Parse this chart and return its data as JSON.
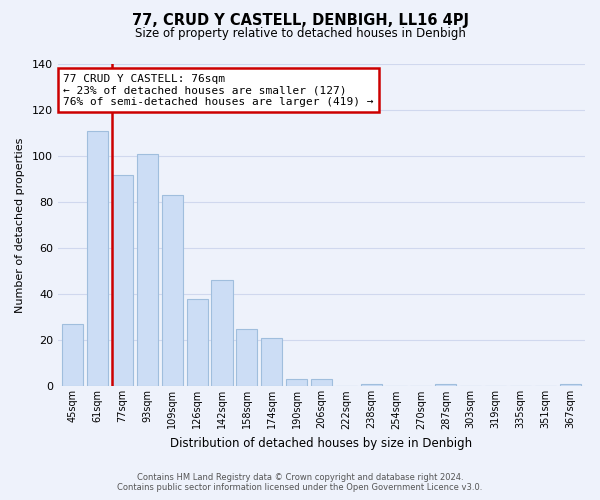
{
  "title": "77, CRUD Y CASTELL, DENBIGH, LL16 4PJ",
  "subtitle": "Size of property relative to detached houses in Denbigh",
  "xlabel": "Distribution of detached houses by size in Denbigh",
  "ylabel": "Number of detached properties",
  "footer_line1": "Contains HM Land Registry data © Crown copyright and database right 2024.",
  "footer_line2": "Contains public sector information licensed under the Open Government Licence v3.0.",
  "bar_labels": [
    "45sqm",
    "61sqm",
    "77sqm",
    "93sqm",
    "109sqm",
    "126sqm",
    "142sqm",
    "158sqm",
    "174sqm",
    "190sqm",
    "206sqm",
    "222sqm",
    "238sqm",
    "254sqm",
    "270sqm",
    "287sqm",
    "303sqm",
    "319sqm",
    "335sqm",
    "351sqm",
    "367sqm"
  ],
  "bar_values": [
    27,
    111,
    92,
    101,
    83,
    38,
    46,
    25,
    21,
    3,
    3,
    0,
    1,
    0,
    0,
    1,
    0,
    0,
    0,
    0,
    1
  ],
  "bar_color": "#ccddf5",
  "bar_edge_color": "#a0bedd",
  "highlight_bar_index": 2,
  "highlight_line_color": "#cc0000",
  "annotation_title": "77 CRUD Y CASTELL: 76sqm",
  "annotation_line1": "← 23% of detached houses are smaller (127)",
  "annotation_line2": "76% of semi-detached houses are larger (419) →",
  "annotation_box_facecolor": "#ffffff",
  "annotation_box_edgecolor": "#cc0000",
  "ylim": [
    0,
    140
  ],
  "yticks": [
    0,
    20,
    40,
    60,
    80,
    100,
    120,
    140
  ],
  "bg_color": "#eef2fb",
  "plot_bg_color": "#eef2fb",
  "grid_color": "#d0d8ee"
}
